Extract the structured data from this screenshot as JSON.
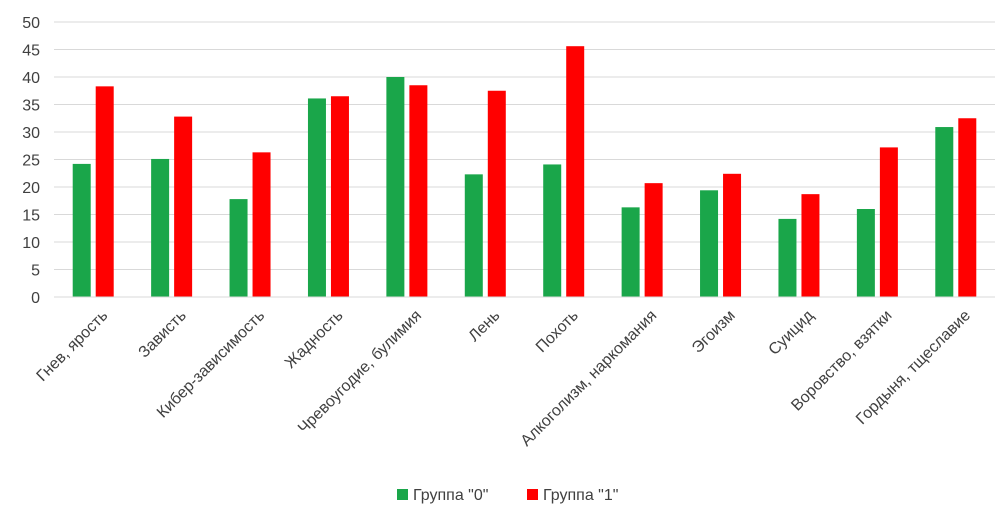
{
  "chart_data": {
    "type": "bar",
    "categories": [
      "Гнев, ярость",
      "Зависть",
      "Кибер-зависимость",
      "Жадность",
      "Чревоугодие, булимия",
      "Лень",
      "Похоть",
      "Алкоголизм, наркомания",
      "Эгоизм",
      "Суицид",
      "Воровство, взятки",
      "Гордыня, тщеславие"
    ],
    "series": [
      {
        "name": "Группа \"0\"",
        "color": "#1aa64a",
        "values": [
          24.2,
          25.1,
          17.8,
          36.1,
          40.0,
          22.3,
          24.1,
          16.3,
          19.4,
          14.2,
          16.0,
          30.9
        ]
      },
      {
        "name": "Группа \"1\"",
        "color": "#ff0000",
        "values": [
          38.3,
          32.8,
          26.3,
          36.5,
          38.5,
          37.5,
          45.6,
          20.7,
          22.4,
          18.7,
          27.2,
          32.5
        ]
      }
    ],
    "ylim": [
      0,
      50
    ],
    "yticks": [
      "0",
      "5",
      "10",
      "15",
      "20",
      "25",
      "30",
      "35",
      "40",
      "45",
      "50"
    ],
    "grid": true,
    "gridColor": "#d9d9d9",
    "legend_position": "bottom"
  }
}
